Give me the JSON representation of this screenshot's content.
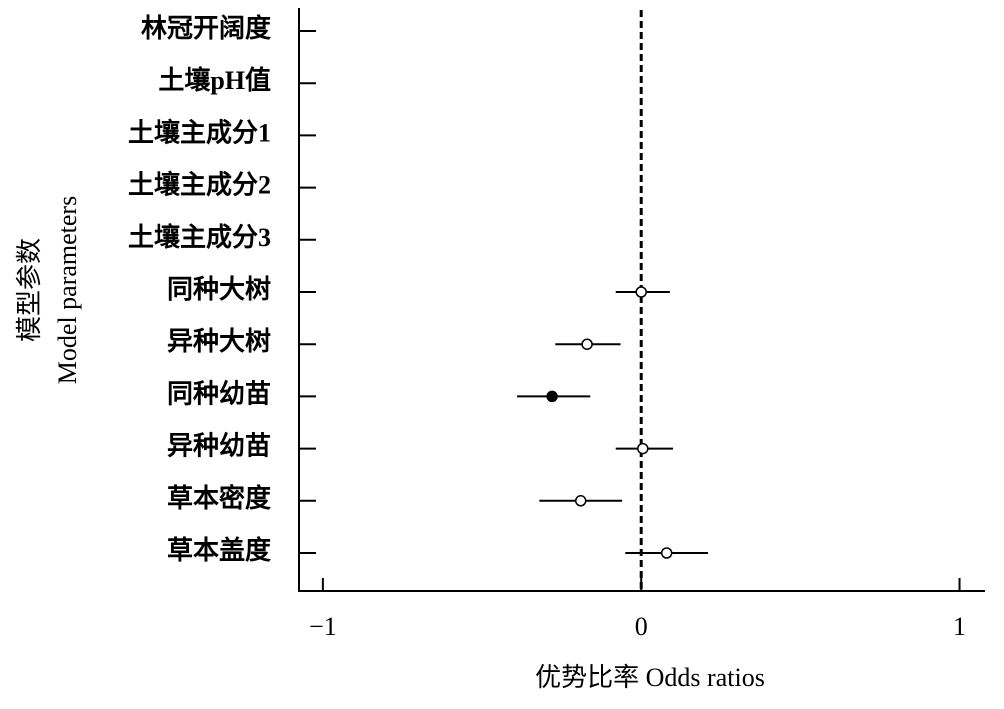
{
  "chart_data": {
    "type": "forest",
    "categories": [
      "林冠开阔度",
      "土壤pH值",
      "土壤主成分1",
      "土壤主成分2",
      "土壤主成分3",
      "同种大树",
      "异种大树",
      "同种幼苗",
      "异种幼苗",
      "草本密度",
      "草本盖度"
    ],
    "values": [
      null,
      null,
      null,
      null,
      null,
      0.0,
      -0.17,
      -0.28,
      0.005,
      -0.19,
      0.08
    ],
    "lower": [
      null,
      null,
      null,
      null,
      null,
      -0.08,
      -0.27,
      -0.39,
      -0.08,
      -0.32,
      -0.05
    ],
    "upper": [
      null,
      null,
      null,
      null,
      null,
      0.09,
      -0.065,
      -0.16,
      0.1,
      -0.06,
      0.21
    ],
    "significant": [
      null,
      null,
      null,
      null,
      null,
      false,
      false,
      true,
      false,
      false,
      false
    ],
    "xlabel": "优势比率 Odds ratios",
    "ylabel": [
      "模型参数",
      "Model parameters"
    ],
    "xlim": [
      -1.075,
      1.08
    ],
    "xticks": [
      {
        "value": -1,
        "label": "−1"
      },
      0,
      1
    ],
    "reference_line": 0,
    "color": "#000000"
  }
}
